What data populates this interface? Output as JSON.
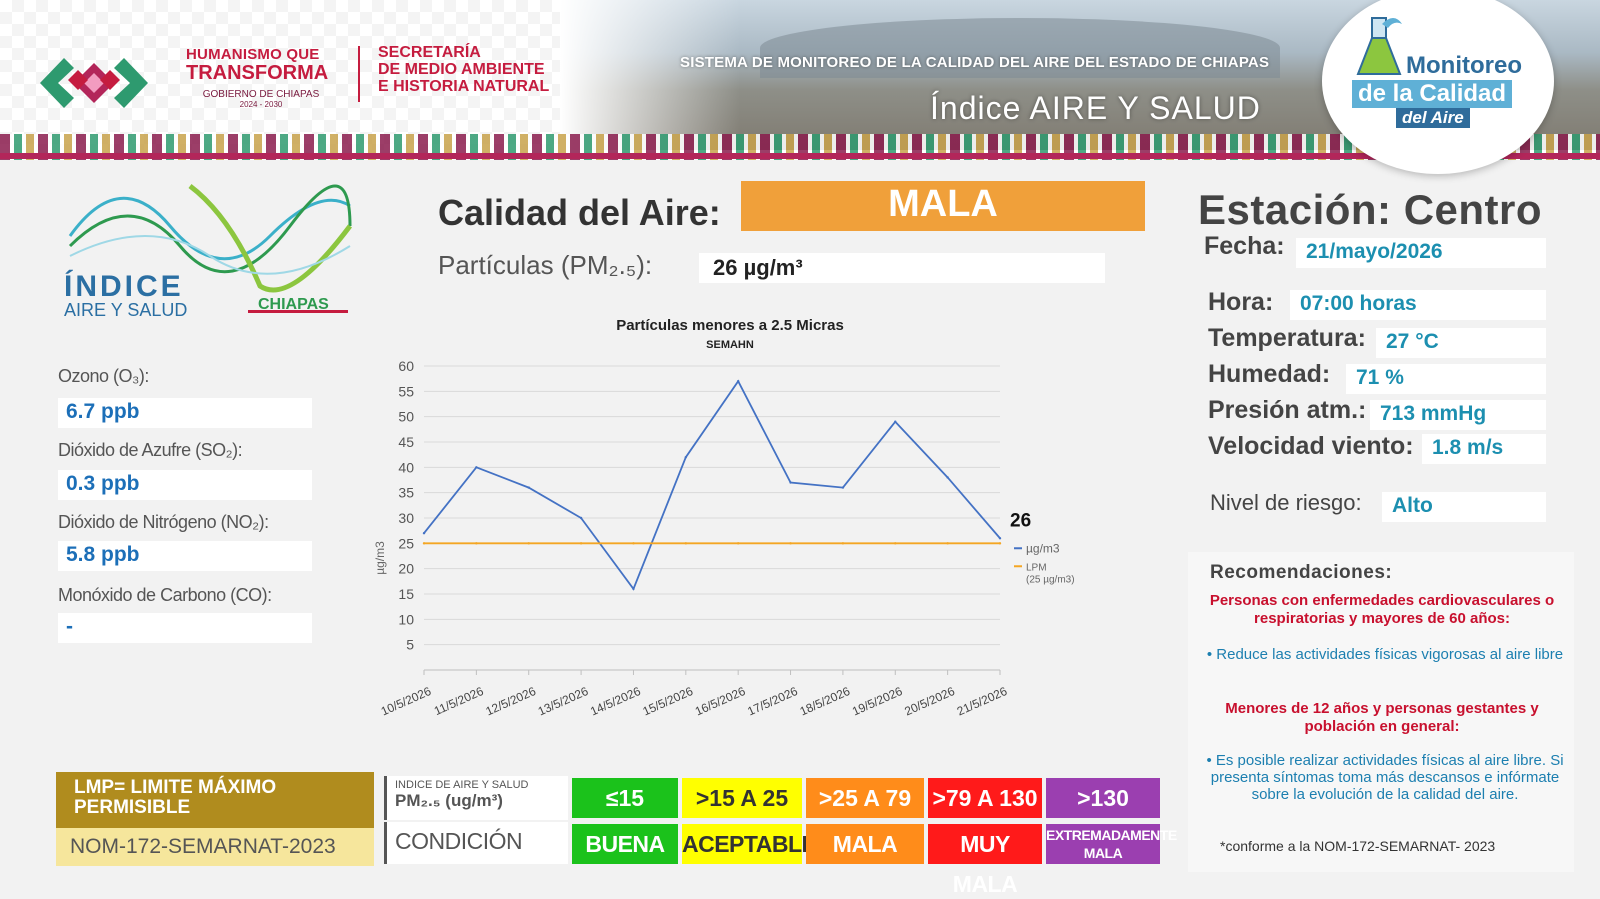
{
  "header": {
    "gov_line1": "HUMANISMO QUE",
    "gov_line2": "TRANSFORMA",
    "gov_line3": "GOBIERNO DE CHIAPAS",
    "gov_line4": "2024 - 2030",
    "secretaria_line1": "SECRETARÍA",
    "secretaria_line2": "DE MEDIO AMBIENTE",
    "secretaria_line3": "E HISTORIA NATURAL",
    "system_title": "SISTEMA DE MONITOREO DE LA CALIDAD DEL AIRE DEL ESTADO DE CHIAPAS",
    "subtitle": "Índice AIRE Y SALUD",
    "badge_line1": "Monitoreo",
    "badge_line2": "de la Calidad",
    "badge_line3": "del Aire"
  },
  "index_logo": {
    "line1": "ÍNDICE",
    "line2": "AIRE Y SALUD",
    "line3": "CHIAPAS"
  },
  "pollutants": [
    {
      "label": "Ozono (O₃):",
      "value": "6.7 ppb"
    },
    {
      "label": "Dióxido de Azufre (SO₂):",
      "value": "0.3 ppb"
    },
    {
      "label": "Dióxido de Nitrógeno (NO₂):",
      "value": "5.8 ppb"
    },
    {
      "label": "Monóxido de Carbono (CO):",
      "value": "-"
    }
  ],
  "air_quality": {
    "label": "Calidad del Aire:",
    "value": "MALA",
    "pm_label": "Partículas (PM₂.₅):",
    "pm_value": "26 µg/m³",
    "color": "#f0a03a"
  },
  "station": {
    "name": "Estación: Centro",
    "fields": [
      {
        "label": "Fecha:",
        "value": "21/mayo/2026"
      },
      {
        "label": "Hora:",
        "value": "07:00 horas"
      },
      {
        "label": "Temperatura:",
        "value": "27 °C"
      },
      {
        "label": "Humedad:",
        "value": "71 %"
      },
      {
        "label": "Presión atm.:",
        "value": "713 mmHg"
      },
      {
        "label": "Velocidad viento:",
        "value": "1.8 m/s"
      },
      {
        "label": "Nivel de riesgo:",
        "value": "Alto"
      }
    ]
  },
  "recommendations": {
    "title": "Recomendaciones:",
    "group1_title": "Personas con enfermedades cardiovasculares o respiratorias y mayores de 60 años:",
    "group1_text": "Reduce las actividades físicas vigorosas al aire libre",
    "group2_title": "Menores de 12 años y personas gestantes y población en general:",
    "group2_text": "Es posible realizar actividades físicas al aire libre. Si presenta síntomas toma más descansos e infórmate sobre la evolución de la calidad del aire.",
    "note": "*conforme a la NOM-172-SEMARNAT- 2023"
  },
  "legend": {
    "lmp_title": "LMP= LIMITE MÁXIMO PERMISIBLE",
    "norm": "NOM-172-SEMARNAT-2023",
    "index_head_line1": "INDICE DE AIRE Y SALUD",
    "index_head_line2": "PM₂.₅ (ug/m³)",
    "condition_head": "CONDICIÓN",
    "categories": [
      {
        "range": "≤15",
        "condition": "BUENA",
        "color": "#1bc21b"
      },
      {
        "range": ">15 A 25",
        "condition": "ACEPTABLE",
        "color": "#ffff00"
      },
      {
        "range": ">25 A 79",
        "condition": "MALA",
        "color": "#ff8c1a"
      },
      {
        "range": ">79 A 130",
        "condition": "MUY MALA",
        "color": "#ff1a1a"
      },
      {
        "range": ">130",
        "condition": "EXTREMADAMENTE MALA",
        "color": "#9b3fb0"
      }
    ]
  },
  "chart_data": {
    "type": "line",
    "title": "Partículas menores a 2.5 Micras",
    "subtitle": "SEMAHN",
    "ylabel": "µg/m3",
    "ylim": [
      0,
      60
    ],
    "yticks": [
      5,
      10,
      15,
      20,
      25,
      30,
      35,
      40,
      45,
      50,
      55,
      60
    ],
    "categories": [
      "10/5/2026",
      "11/5/2026",
      "12/5/2026",
      "13/5/2026",
      "14/5/2026",
      "15/5/2026",
      "16/5/2026",
      "17/5/2026",
      "18/5/2026",
      "19/5/2026",
      "20/5/2026",
      "21/5/2026"
    ],
    "series": [
      {
        "name": "µg/m3",
        "values": [
          27,
          40,
          36,
          30,
          16,
          42,
          57,
          37,
          36,
          49,
          38,
          26
        ],
        "color": "#4472c4"
      },
      {
        "name": "LPM (25 µg/m3)",
        "values": [
          25,
          25,
          25,
          25,
          25,
          25,
          25,
          25,
          25,
          25,
          25,
          25
        ],
        "color": "#f4a623"
      }
    ],
    "last_value_label": "26",
    "grid": true,
    "legend_position": "right"
  }
}
